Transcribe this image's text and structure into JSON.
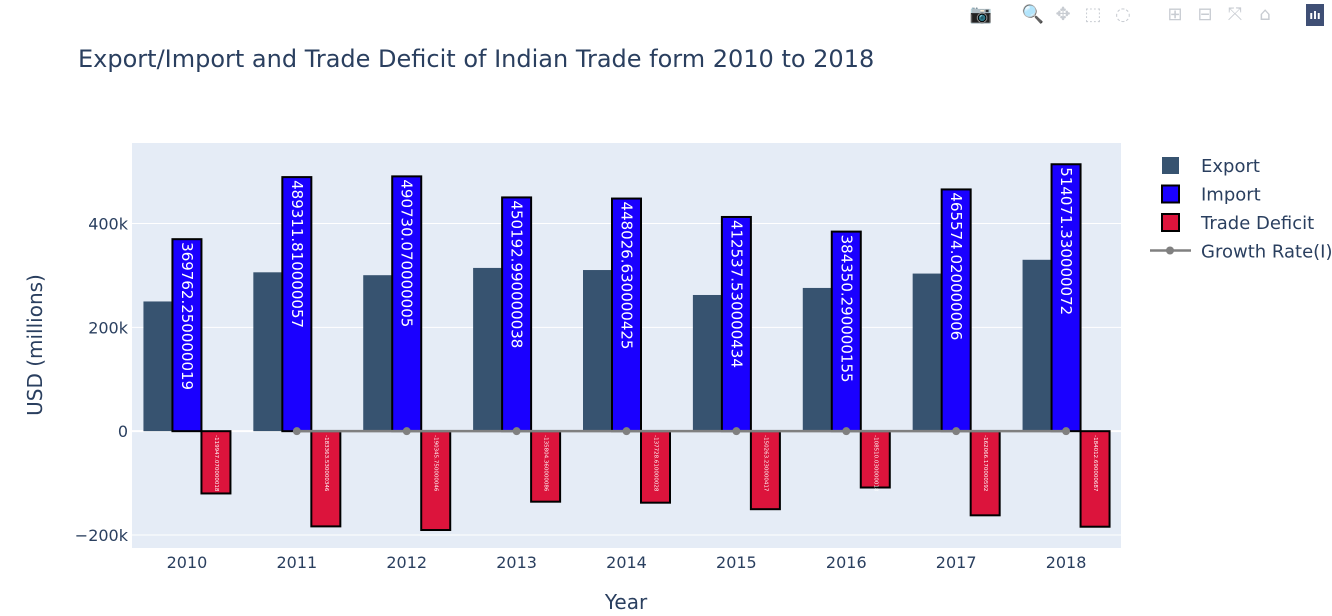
{
  "toolbar": {
    "buttons": [
      {
        "name": "camera-icon",
        "glyph": "📷",
        "active": false
      },
      {
        "name": "zoom-icon",
        "glyph": "🔍",
        "active": true
      },
      {
        "name": "pan-icon",
        "glyph": "✥",
        "active": false
      },
      {
        "name": "box-select-icon",
        "glyph": "⬚",
        "active": false
      },
      {
        "name": "lasso-select-icon",
        "glyph": "◌",
        "active": false
      },
      {
        "name": "zoom-in-icon",
        "glyph": "⊞",
        "active": false
      },
      {
        "name": "zoom-out-icon",
        "glyph": "⊟",
        "active": false
      },
      {
        "name": "autoscale-icon",
        "glyph": "⤧",
        "active": false
      },
      {
        "name": "reset-axes-icon",
        "glyph": "⌂",
        "active": false
      }
    ],
    "logo_glyph": "ılı"
  },
  "chart_data": {
    "type": "bar",
    "title": "Export/Import and Trade Deficit of Indian Trade form 2010 to 2018",
    "xlabel": "Year",
    "ylabel": "USD (millions)",
    "categories": [
      "2010",
      "2011",
      "2012",
      "2013",
      "2014",
      "2015",
      "2016",
      "2017",
      "2018"
    ],
    "ylim": [
      -225000,
      555000
    ],
    "yticks": [
      -200000,
      0,
      200000,
      400000
    ],
    "ytick_labels": [
      "−200k",
      "0",
      "200k",
      "400k"
    ],
    "grid": true,
    "legend_position": "top-right",
    "series": [
      {
        "name": "Export",
        "kind": "bar",
        "color": "#375370",
        "values": [
          249815,
          305964,
          300401,
          314405,
          310338,
          262291,
          275852,
          303526,
          330078
        ],
        "labels": null
      },
      {
        "name": "Import",
        "kind": "bar",
        "color": "#1a00ff",
        "values": [
          369762.250000019,
          489311.810000057,
          490730.070000005,
          450192.990000038,
          448026.630000425,
          412537.530000434,
          384350.290000155,
          465574.020000006,
          514071.330000072
        ],
        "labels": [
          "369762.250000019",
          "489311.810000057",
          "490730.070000005",
          "450192.990000038",
          "448026.630000425",
          "412537.530000434",
          "384350.290000155",
          "465574.020000006",
          "514071.330000072"
        ]
      },
      {
        "name": "Trade Deficit",
        "kind": "bar",
        "color": "#dc143c",
        "values": [
          -119947.07,
          -183363.53,
          -190345.75,
          -135804.36,
          -137728.61,
          -150263.23,
          -108510.03,
          -162066.17,
          -184012.69
        ],
        "labels": [
          "-119947.070000018",
          "-183363.530000346",
          "-190345.750000046",
          "-135804.360000086",
          "-137728.610000028",
          "-150263.230000417",
          "-108510.030000018",
          "-162066.170000592",
          "-184012.690000687"
        ]
      },
      {
        "name": "Growth Rate(I)",
        "kind": "line",
        "color": "#808080",
        "values": [
          null,
          0.32,
          0.003,
          -0.083,
          -0.005,
          -0.079,
          -0.068,
          0.211,
          0.104
        ]
      }
    ]
  }
}
